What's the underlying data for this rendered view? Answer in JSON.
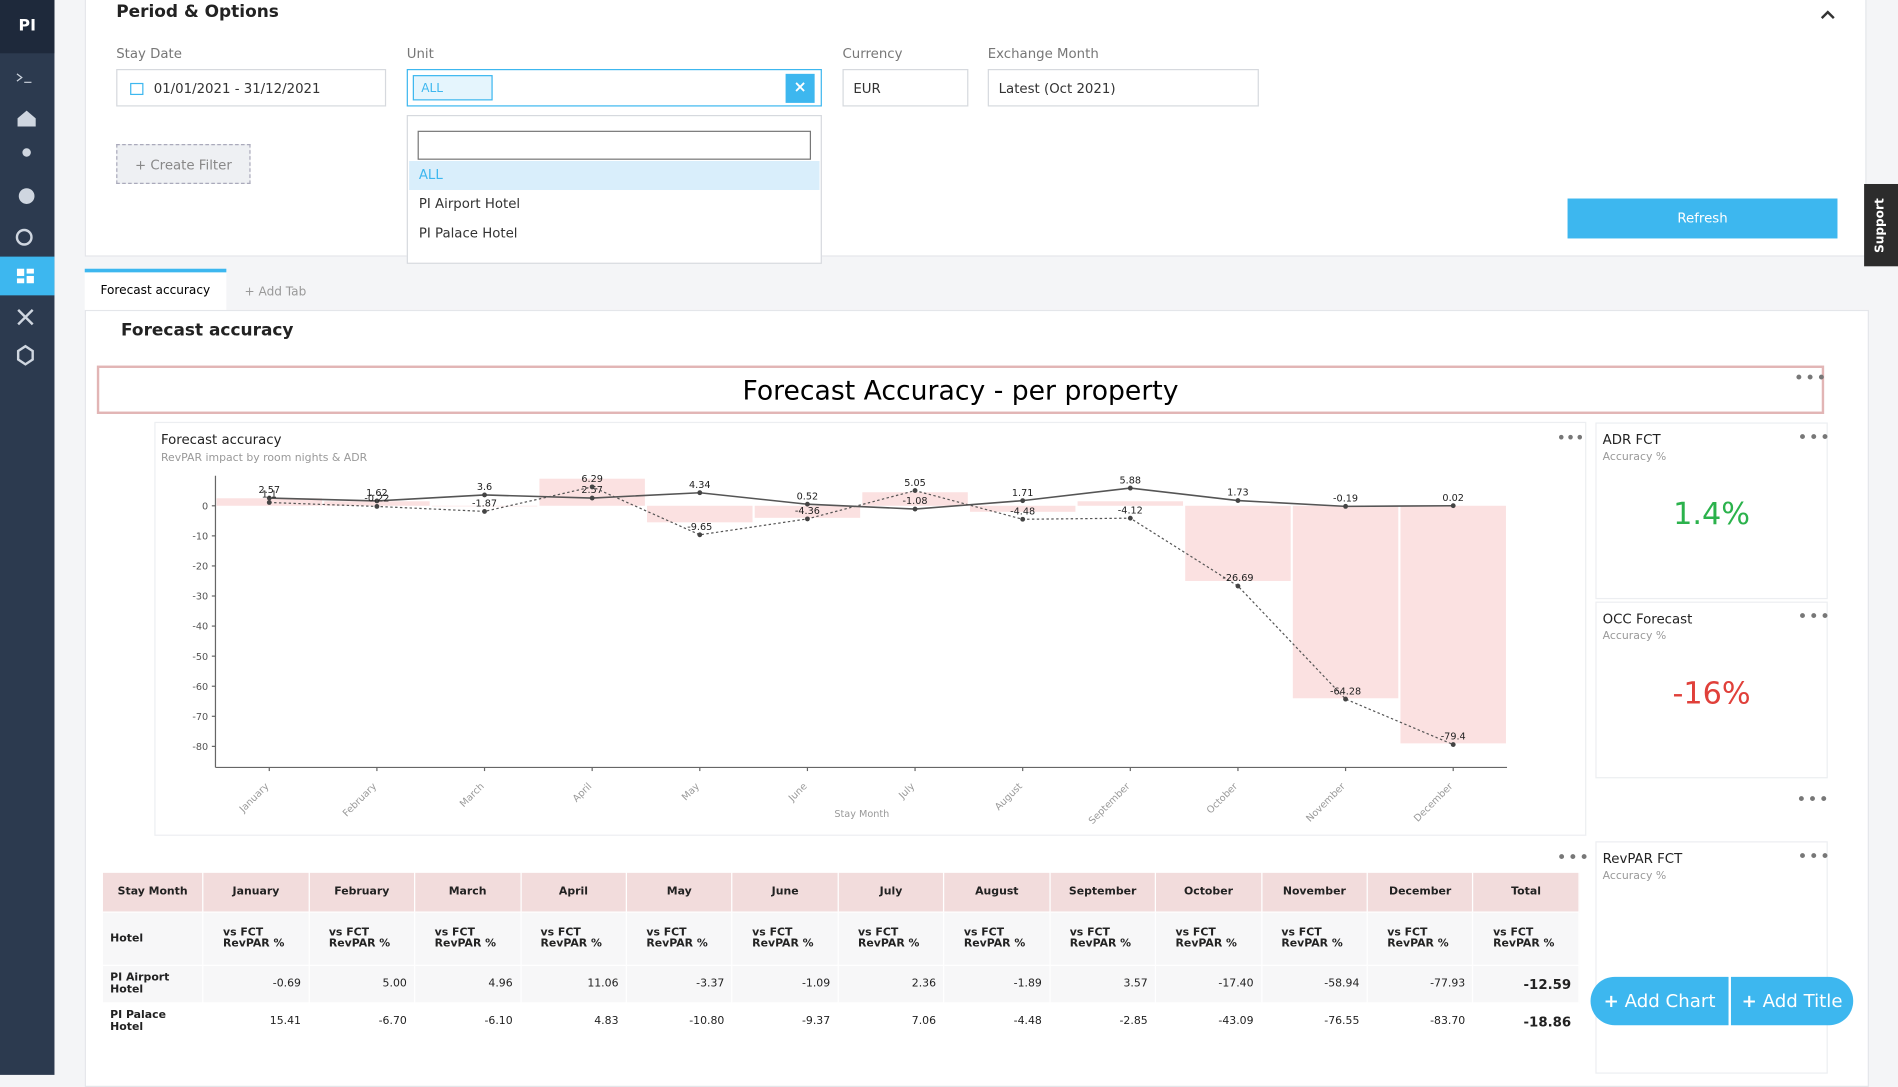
{
  "sidebar": {
    "logo": "PI"
  },
  "options": {
    "title": "Period & Options",
    "stay_date_label": "Stay Date",
    "stay_date": "01/01/2021 - 31/12/2021",
    "unit_label": "Unit",
    "unit_chip": "ALL",
    "currency_label": "Currency",
    "currency": "EUR",
    "exchange_label": "Exchange Month",
    "exchange": "Latest (Oct 2021)",
    "create_filter": "+ Create Filter",
    "refresh": "Refresh",
    "dropdown": [
      "ALL",
      "PI Airport Hotel",
      "PI Palace Hotel"
    ]
  },
  "support": "Support",
  "tabs": [
    "Forecast accuracy",
    "+ Add Tab"
  ],
  "section_title": "Forecast accuracy",
  "banner": "Forecast Accuracy - per property",
  "chart_data": {
    "type": "combo",
    "title": "Forecast accuracy",
    "subtitle": "RevPAR impact by room nights & ADR",
    "x_label": "Stay Month",
    "categories": [
      "January",
      "February",
      "March",
      "April",
      "May",
      "June",
      "July",
      "August",
      "September",
      "October",
      "November",
      "December"
    ],
    "series": [
      {
        "type": "bar",
        "color": "#fbe1e1",
        "values": [
          2.5,
          1.5,
          0,
          9,
          -5.5,
          -4,
          4.5,
          -2,
          1.5,
          -25,
          -64,
          -79
        ]
      },
      {
        "type": "line",
        "color": "#555555",
        "line_style": "solid",
        "values": [
          2.57,
          1.62,
          3.6,
          2.57,
          4.34,
          0.52,
          -1.08,
          1.71,
          5.88,
          1.73,
          -0.19,
          0.02
        ]
      },
      {
        "type": "line",
        "color": "#555555",
        "line_style": "dotted",
        "values": [
          1.1,
          -0.22,
          -1.87,
          6.29,
          -9.65,
          -4.36,
          5.05,
          -4.48,
          -4.12,
          -26.69,
          -64.28,
          -79.4
        ]
      }
    ],
    "ylim": [
      -87,
      10
    ],
    "yticks": [
      0,
      -10,
      -20,
      -30,
      -40,
      -50,
      -60,
      -70,
      -80
    ],
    "grid": false
  },
  "kpis": [
    {
      "title": "ADR FCT",
      "subtitle": "Accuracy %",
      "value": "1.4%",
      "color": "#2bb24c"
    },
    {
      "title": "OCC Forecast",
      "subtitle": "Accuracy %",
      "value": "-16%",
      "color": "#e0403a"
    },
    {
      "title": "RevPAR FCT",
      "subtitle": "Accuracy %"
    }
  ],
  "table": {
    "corner": "Stay Month",
    "row_header": "Hotel",
    "total_label": "Total",
    "measure": "vs FCT RevPAR %",
    "rows": [
      {
        "hotel": "PI Airport Hotel",
        "values": [
          "-0.69",
          "5.00",
          "4.96",
          "11.06",
          "-3.37",
          "-1.09",
          "2.36",
          "-1.89",
          "3.57",
          "-17.40",
          "-58.94",
          "-77.93",
          "-12.59"
        ]
      },
      {
        "hotel": "PI Palace Hotel",
        "values": [
          "15.41",
          "-6.70",
          "-6.10",
          "4.83",
          "-10.80",
          "-9.37",
          "7.06",
          "-4.48",
          "-2.85",
          "-43.09",
          "-76.55",
          "-83.70",
          "-18.86"
        ]
      }
    ]
  },
  "buttons": [
    "Add Chart",
    "Add Title"
  ]
}
